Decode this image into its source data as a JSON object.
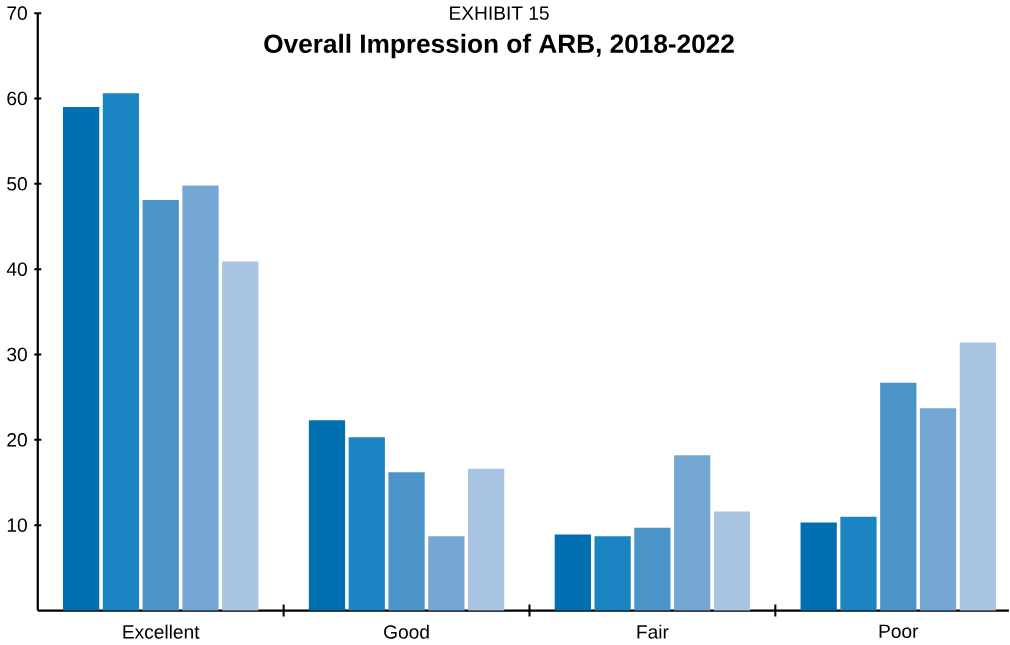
{
  "chart_data": {
    "type": "bar",
    "title": "Overall Impression of ARB, 2018-2022",
    "annotations": [
      "EXHIBIT 15"
    ],
    "categories": [
      "Excellent",
      "Good",
      "Fair",
      "Poor"
    ],
    "series": [
      {
        "color": "#0070b0",
        "values": [
          59.0,
          22.3,
          8.9,
          10.3
        ]
      },
      {
        "color": "#1a85c2",
        "values": [
          60.6,
          20.3,
          8.7,
          11.0
        ]
      },
      {
        "color": "#4a94c8",
        "values": [
          48.1,
          16.2,
          9.7,
          26.7
        ]
      },
      {
        "color": "#74a7d3",
        "values": [
          49.8,
          8.7,
          18.2,
          23.7
        ]
      },
      {
        "color": "#a9c4e2",
        "values": [
          40.9,
          16.6,
          11.6,
          31.4
        ]
      }
    ],
    "ylim": [
      0,
      70
    ],
    "yticks": [
      10,
      20,
      30,
      40,
      50,
      60,
      70
    ]
  }
}
